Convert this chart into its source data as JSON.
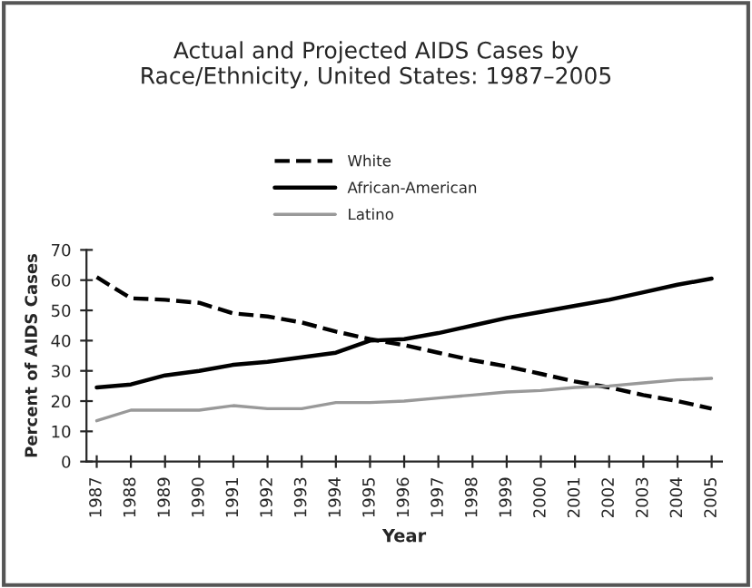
{
  "chart_data": {
    "type": "line",
    "title": "Actual and Projected AIDS Cases by\nRace/Ethnicity, United States: 1987–2005",
    "xlabel": "Year",
    "ylabel": "Percent of AIDS Cases",
    "categories": [
      "1987",
      "1988",
      "1989",
      "1990",
      "1991",
      "1992",
      "1993",
      "1994",
      "1995",
      "1996",
      "1997",
      "1998",
      "1999",
      "2000",
      "2001",
      "2002",
      "2003",
      "2004",
      "2005"
    ],
    "series": [
      {
        "name": "White",
        "color": "#000000",
        "line_style": "dashed",
        "values": [
          61,
          54,
          53.5,
          52.5,
          49,
          48,
          46,
          43,
          40.5,
          38.5,
          36,
          33.5,
          31.5,
          29,
          26.5,
          24.5,
          22,
          20,
          17.5
        ]
      },
      {
        "name": "African-American",
        "color": "#000000",
        "line_style": "solid",
        "values": [
          24.5,
          25.5,
          28.5,
          30,
          32,
          33,
          34.5,
          36,
          40,
          40.5,
          42.5,
          45,
          47.5,
          49.5,
          51.5,
          53.5,
          56,
          58.5,
          60.5
        ]
      },
      {
        "name": "Latino",
        "color": "#999999",
        "line_style": "solid",
        "values": [
          13.5,
          17,
          17,
          17,
          18.5,
          17.5,
          17.5,
          19.5,
          19.5,
          20,
          21,
          22,
          23,
          23.5,
          24.5,
          25,
          26,
          27,
          27.5
        ]
      }
    ],
    "ylim": [
      0,
      70
    ],
    "yticks": [
      0,
      10,
      20,
      30,
      40,
      50,
      60,
      70
    ],
    "grid": false,
    "legend": "top",
    "marker": "none"
  }
}
